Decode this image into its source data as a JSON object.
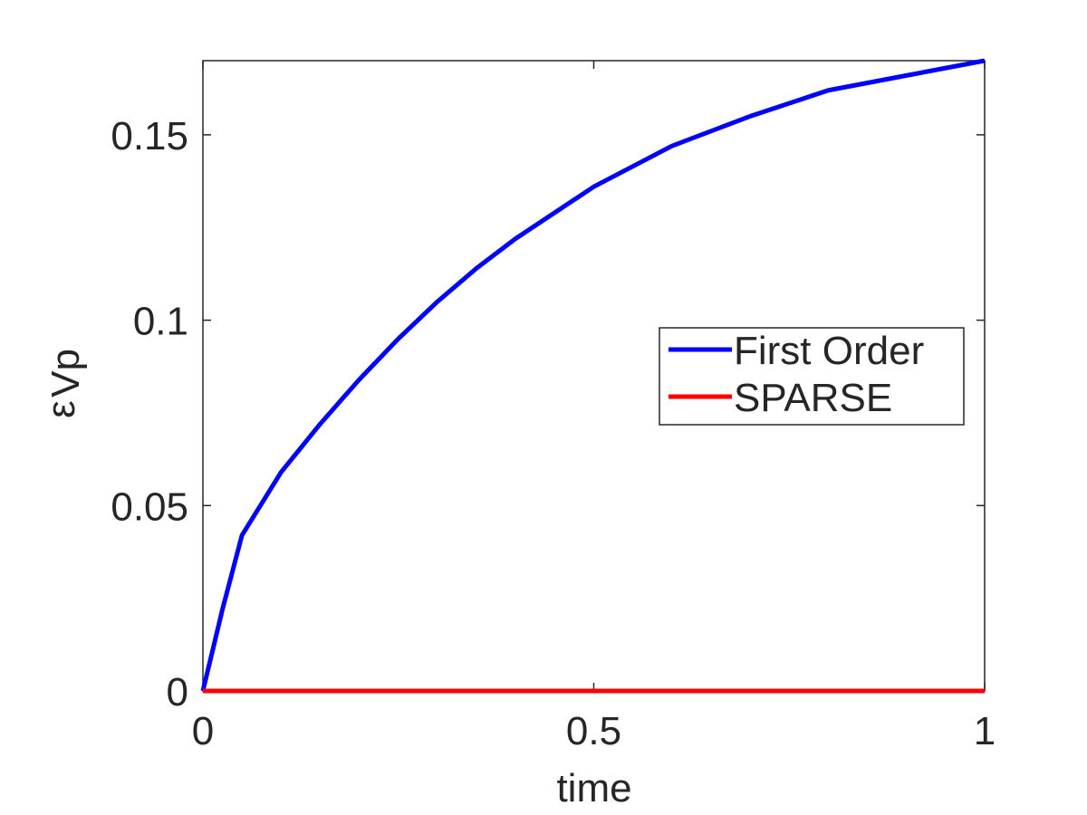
{
  "chart_data": {
    "type": "line",
    "xlabel": "time",
    "ylabel": "ε",
    "ylabel_subscript": "Vp",
    "x": [
      0,
      0.025,
      0.05,
      0.1,
      0.15,
      0.2,
      0.25,
      0.3,
      0.35,
      0.4,
      0.5,
      0.6,
      0.7,
      0.8,
      0.9,
      1
    ],
    "series": [
      {
        "name": "First Order",
        "color": "#0000ff",
        "values": [
          0,
          0.022,
          0.042,
          0.059,
          0.072,
          0.084,
          0.095,
          0.105,
          0.114,
          0.122,
          0.136,
          0.147,
          0.155,
          0.162,
          0.166,
          0.17
        ]
      },
      {
        "name": "SPARSE",
        "color": "#ff0000",
        "values": [
          0,
          0,
          0,
          0,
          0,
          0,
          0,
          0,
          0,
          0,
          0,
          0,
          0,
          0,
          0,
          0
        ]
      }
    ],
    "xlim": [
      0,
      1
    ],
    "ylim": [
      0,
      0.17
    ],
    "xticks": [
      0,
      0.5,
      1
    ],
    "yticks": [
      0,
      0.05,
      0.1,
      0.15
    ],
    "legend": "right"
  }
}
